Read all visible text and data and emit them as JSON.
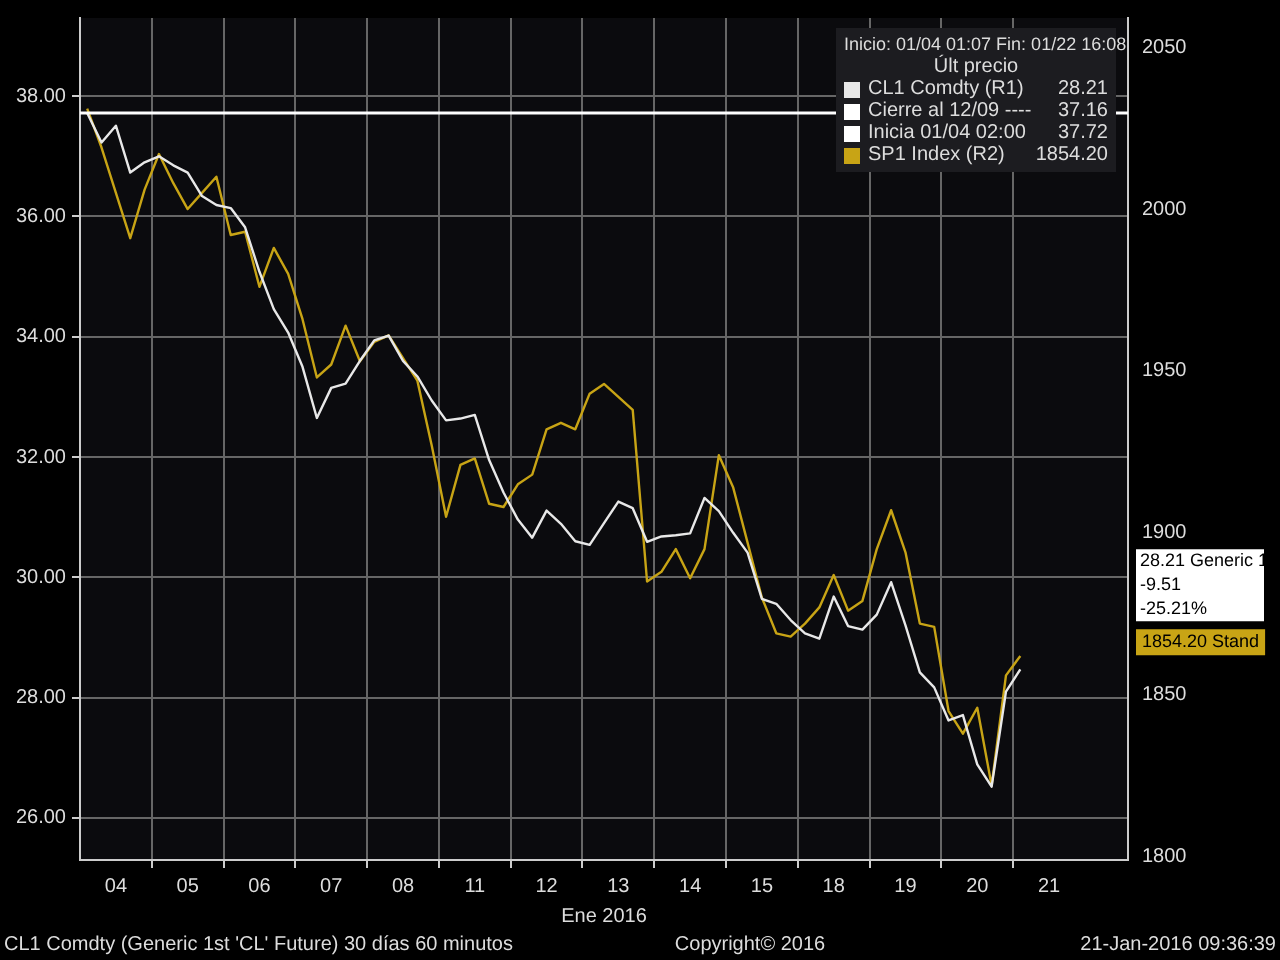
{
  "chart_data": {
    "type": "line",
    "xlabel": "Ene 2016",
    "legend_title": "Inicio: 01/04 01:07 Fin: 01/22 16:08",
    "legend": "top right",
    "grid": true,
    "categories": [
      null,
      null,
      "04",
      null,
      null,
      null,
      null,
      "05",
      null,
      null,
      null,
      null,
      "06",
      null,
      null,
      null,
      null,
      "07",
      null,
      null,
      null,
      null,
      "08",
      null,
      null,
      null,
      null,
      "11",
      null,
      null,
      null,
      null,
      "12",
      null,
      null,
      null,
      null,
      "13",
      null,
      null,
      null,
      null,
      "14",
      null,
      null,
      null,
      null,
      "15",
      null,
      null,
      null,
      null,
      "18",
      null,
      null,
      null,
      null,
      "19",
      null,
      null,
      null,
      null,
      "20",
      null,
      null,
      null,
      null,
      "21",
      null,
      null,
      null,
      null,
      null
    ],
    "ylim": [
      25.3,
      39.3
    ],
    "yticks": [
      {
        "value": 26,
        "label": "26.00"
      },
      {
        "value": 28,
        "label": "28.00"
      },
      {
        "value": 30,
        "label": "30.00"
      },
      {
        "value": 32,
        "label": "32.00"
      },
      {
        "value": 34,
        "label": "34.00"
      },
      {
        "value": 36,
        "label": "36.00"
      },
      {
        "value": 38,
        "label": "38.00"
      }
    ],
    "y2lim": [
      1799,
      2059
    ],
    "y2ticks": [
      1800,
      1850,
      1900,
      1950,
      2000,
      2050
    ],
    "series": [
      {
        "name": "CL1 Comdty (R1)",
        "color": "#e8e8e8",
        "values": [
          37.72,
          37.23,
          37.51,
          36.73,
          36.9,
          37.0,
          36.85,
          36.73,
          36.34,
          36.19,
          36.14,
          35.82,
          35.08,
          34.46,
          34.07,
          33.5,
          32.65,
          33.15,
          33.22,
          33.6,
          33.94,
          34.02,
          33.6,
          33.34,
          32.94,
          32.61,
          32.64,
          32.7,
          31.95,
          31.41,
          30.96,
          30.66,
          31.11,
          30.89,
          30.6,
          30.54,
          30.9,
          31.26,
          31.15,
          30.59,
          30.68,
          30.7,
          30.73,
          31.32,
          31.1,
          30.74,
          30.41,
          29.64,
          29.56,
          29.29,
          29.07,
          28.98,
          29.68,
          29.19,
          29.13,
          29.38,
          29.92,
          29.2,
          28.42,
          28.17,
          27.62,
          27.71,
          26.89,
          26.52,
          28.1,
          28.47,
          null,
          null,
          null,
          null,
          null,
          null,
          null
        ]
      },
      {
        "name": "SP1 Index (R2)",
        "color": "#c8a415",
        "axis": "y2",
        "values": [
          2031,
          2019,
          2005,
          1991,
          2006,
          2017,
          2008,
          2000,
          2005,
          2010,
          1992,
          1993,
          1976,
          1988,
          1980,
          1966,
          1948,
          1952,
          1964,
          1953,
          1959,
          1961,
          1954,
          1947,
          1927,
          1905,
          1921,
          1923,
          1909,
          1908,
          1915,
          1918,
          1932,
          1934,
          1932,
          1943,
          1946,
          1942,
          1938,
          1885,
          1888,
          1895,
          1886,
          1895,
          1924,
          1914,
          1897,
          1880,
          1869,
          1868,
          1872,
          1877,
          1887,
          1876,
          1879,
          1895,
          1907,
          1894,
          1872,
          1871,
          1845,
          1838,
          1846,
          1822,
          1856,
          1862,
          null,
          null,
          null,
          null,
          null,
          null,
          null
        ]
      }
    ],
    "ref_lines": [
      {
        "axis": "y",
        "value": 37.72,
        "color": "#ffffff"
      }
    ],
    "annotations": [
      "Últ precio",
      "28.21",
      "Cierre al 12/09 ----",
      "37.16",
      "Inicia 01/04 02:00",
      "37.72",
      "1854.20",
      "28.21 Generic 1",
      "-9.51",
      "-25.21%",
      "1854.20 Stand",
      "CL1 Comdty (Generic 1st 'CL' Future) 30 días 60 minutos",
      "Copyright© 2016",
      "21-Jan-2016 09:36:39"
    ]
  }
}
